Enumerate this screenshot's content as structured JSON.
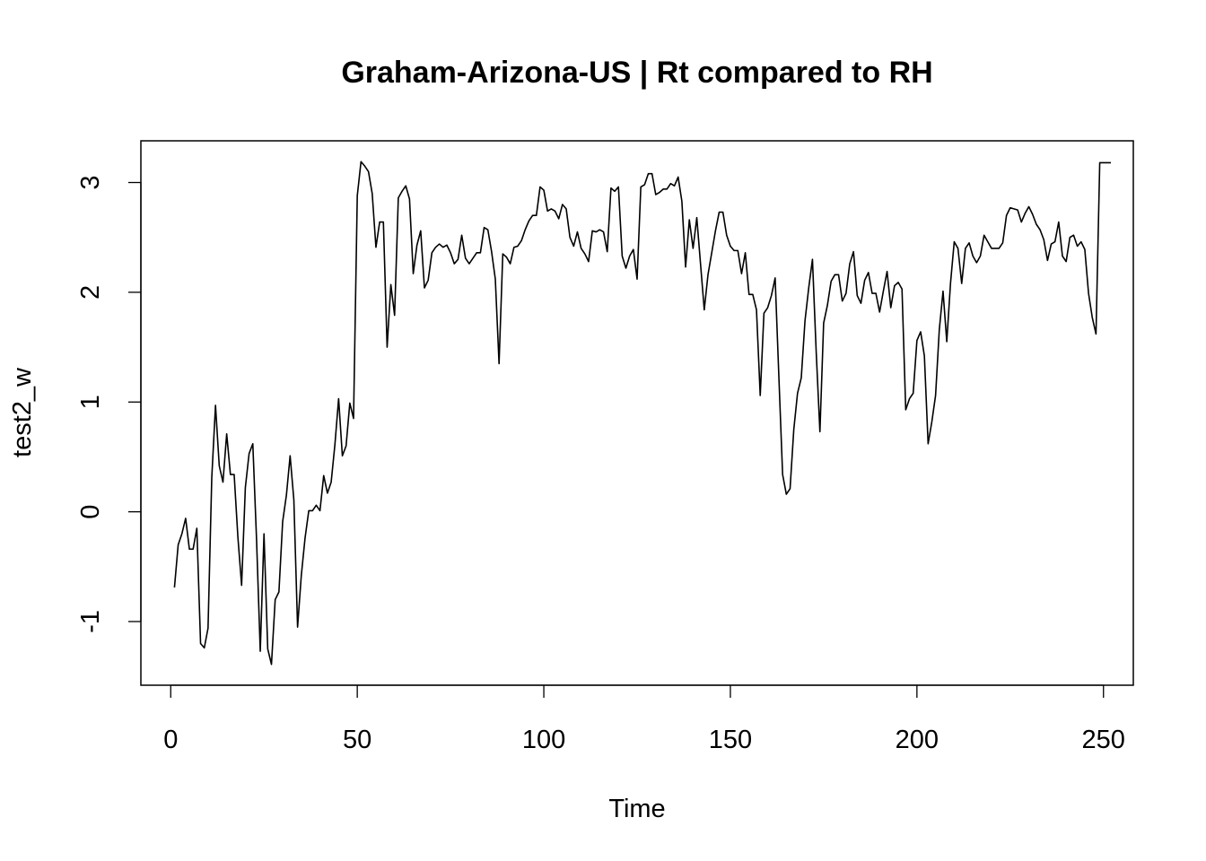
{
  "chart_data": {
    "type": "line",
    "title": "Graham-Arizona-US | Rt compared to RH",
    "xlabel": "Time",
    "ylabel": "test2_w",
    "xlim": [
      -8,
      258
    ],
    "ylim": [
      -1.58,
      3.38
    ],
    "x_ticks": [
      0,
      50,
      100,
      150,
      200,
      250
    ],
    "y_ticks": [
      -1,
      0,
      1,
      2,
      3
    ],
    "grid": false,
    "series": [
      {
        "color": "#000000",
        "x_start": 1,
        "values": [
          -0.69,
          -0.3,
          -0.2,
          -0.06,
          -0.34,
          -0.34,
          -0.15,
          -1.2,
          -1.24,
          -1.06,
          0.31,
          0.97,
          0.42,
          0.27,
          0.71,
          0.34,
          0.34,
          -0.23,
          -0.67,
          0.22,
          0.53,
          0.62,
          -0.25,
          -1.27,
          -0.2,
          -1.25,
          -1.39,
          -0.8,
          -0.73,
          -0.09,
          0.15,
          0.51,
          0.11,
          -1.05,
          -0.58,
          -0.24,
          0.01,
          0.01,
          0.06,
          0.01,
          0.33,
          0.17,
          0.27,
          0.61,
          1.03,
          0.51,
          0.6,
          0.99,
          0.85,
          2.88,
          3.19,
          3.15,
          3.1,
          2.9,
          2.41,
          2.64,
          2.64,
          1.5,
          2.07,
          1.79,
          2.86,
          2.92,
          2.97,
          2.85,
          2.17,
          2.43,
          2.56,
          2.04,
          2.11,
          2.36,
          2.41,
          2.44,
          2.41,
          2.43,
          2.36,
          2.26,
          2.3,
          2.52,
          2.31,
          2.26,
          2.31,
          2.36,
          2.36,
          2.59,
          2.57,
          2.37,
          2.12,
          1.35,
          2.35,
          2.32,
          2.26,
          2.41,
          2.42,
          2.47,
          2.57,
          2.65,
          2.7,
          2.7,
          2.96,
          2.93,
          2.74,
          2.76,
          2.74,
          2.67,
          2.8,
          2.76,
          2.5,
          2.42,
          2.55,
          2.4,
          2.35,
          2.28,
          2.56,
          2.55,
          2.57,
          2.55,
          2.37,
          2.95,
          2.92,
          2.96,
          2.33,
          2.22,
          2.33,
          2.39,
          2.12,
          2.96,
          2.98,
          3.08,
          3.08,
          2.89,
          2.91,
          2.94,
          2.94,
          2.99,
          2.97,
          3.05,
          2.83,
          2.23,
          2.66,
          2.4,
          2.68,
          2.26,
          1.84,
          2.16,
          2.36,
          2.56,
          2.73,
          2.73,
          2.52,
          2.42,
          2.38,
          2.38,
          2.17,
          2.36,
          1.98,
          1.98,
          1.84,
          1.06,
          1.81,
          1.86,
          1.97,
          2.13,
          1.23,
          0.34,
          0.16,
          0.21,
          0.75,
          1.08,
          1.22,
          1.74,
          2.04,
          2.3,
          1.46,
          0.73,
          1.72,
          1.88,
          2.1,
          2.16,
          2.16,
          1.92,
          1.99,
          2.26,
          2.37,
          1.97,
          1.9,
          2.11,
          2.18,
          1.99,
          1.99,
          1.82,
          2.01,
          2.19,
          1.86,
          2.06,
          2.09,
          2.03,
          0.93,
          1.03,
          1.08,
          1.56,
          1.64,
          1.42,
          0.62,
          0.82,
          1.06,
          1.66,
          2.01,
          1.55,
          2.08,
          2.46,
          2.4,
          2.08,
          2.4,
          2.45,
          2.33,
          2.27,
          2.33,
          2.52,
          2.46,
          2.4,
          2.4,
          2.4,
          2.45,
          2.7,
          2.77,
          2.76,
          2.75,
          2.64,
          2.72,
          2.78,
          2.71,
          2.62,
          2.57,
          2.48,
          2.29,
          2.44,
          2.46,
          2.64,
          2.33,
          2.28,
          2.5,
          2.52,
          2.42,
          2.46,
          2.39,
          1.99,
          1.77,
          1.62,
          3.18,
          3.18,
          3.18,
          3.18
        ]
      }
    ]
  }
}
